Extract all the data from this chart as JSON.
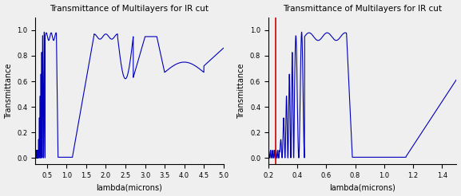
{
  "title": "Transmittance of Multilayers for IR cut",
  "xlabel": "lambda(microns)",
  "ylabel": "Transmittance",
  "plot1_xlim": [
    0.2,
    5.0
  ],
  "plot1_ylim": [
    -0.05,
    1.1
  ],
  "plot1_xticks": [
    0.5,
    1.0,
    1.5,
    2.0,
    2.5,
    3.0,
    3.5,
    4.0,
    4.5,
    5.0
  ],
  "plot2_xlim": [
    0.2,
    1.5
  ],
  "plot2_ylim": [
    -0.05,
    1.1
  ],
  "plot2_xticks": [
    0.2,
    0.4,
    0.6,
    0.8,
    1.0,
    1.2,
    1.4
  ],
  "red_line_x": 0.25,
  "line_color": "#0000bb",
  "red_color": "#cc0000",
  "bg_color": "#efefef",
  "line_width": 0.8
}
